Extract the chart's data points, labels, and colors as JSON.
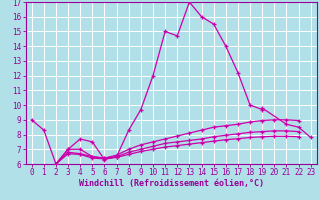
{
  "xlabel": "Windchill (Refroidissement éolien,°C)",
  "background_color": "#b2e0e8",
  "grid_color": "#ffffff",
  "line_color": "#cc00aa",
  "xlim": [
    -0.5,
    23.5
  ],
  "ylim": [
    6,
    17
  ],
  "xticks": [
    0,
    1,
    2,
    3,
    4,
    5,
    6,
    7,
    8,
    9,
    10,
    11,
    12,
    13,
    14,
    15,
    16,
    17,
    18,
    19,
    20,
    21,
    22,
    23
  ],
  "yticks": [
    6,
    7,
    8,
    9,
    10,
    11,
    12,
    13,
    14,
    15,
    16,
    17
  ],
  "series": [
    {
      "x": [
        0,
        1,
        2,
        3,
        4,
        5,
        6,
        7,
        8,
        9,
        10,
        11,
        12,
        13,
        14,
        15,
        16,
        17,
        18,
        19
      ],
      "y": [
        9.0,
        8.3,
        6.0,
        7.0,
        7.7,
        7.5,
        6.3,
        6.5,
        8.3,
        9.7,
        12.0,
        15.0,
        14.7,
        17.0,
        16.0,
        15.5,
        14.0,
        12.2,
        10.0,
        9.7
      ]
    },
    {
      "x": [
        19,
        21,
        22,
        23
      ],
      "y": [
        9.8,
        8.7,
        8.5,
        7.8
      ]
    },
    {
      "x": [
        2,
        3,
        4,
        5,
        6,
        7,
        8,
        9,
        10,
        11,
        12,
        13,
        14,
        15,
        16,
        17,
        18,
        19,
        20,
        21,
        22
      ],
      "y": [
        6.0,
        7.0,
        7.0,
        6.5,
        6.4,
        6.6,
        7.0,
        7.3,
        7.5,
        7.7,
        7.9,
        8.1,
        8.3,
        8.5,
        8.6,
        8.7,
        8.85,
        8.95,
        9.0,
        9.0,
        8.95
      ]
    },
    {
      "x": [
        2,
        3,
        4,
        5,
        6,
        7,
        8,
        9,
        10,
        11,
        12,
        13,
        14,
        15,
        16,
        17,
        18,
        19,
        20,
        21,
        22
      ],
      "y": [
        6.0,
        6.8,
        6.7,
        6.5,
        6.4,
        6.5,
        6.8,
        7.0,
        7.2,
        7.4,
        7.5,
        7.6,
        7.7,
        7.85,
        7.95,
        8.05,
        8.15,
        8.2,
        8.25,
        8.25,
        8.2
      ]
    },
    {
      "x": [
        2,
        3,
        4,
        5,
        6,
        7,
        8,
        9,
        10,
        11,
        12,
        13,
        14,
        15,
        16,
        17,
        18,
        19,
        20,
        21,
        22
      ],
      "y": [
        6.0,
        6.7,
        6.65,
        6.4,
        6.35,
        6.45,
        6.65,
        6.85,
        7.0,
        7.15,
        7.25,
        7.35,
        7.45,
        7.55,
        7.65,
        7.72,
        7.8,
        7.85,
        7.88,
        7.88,
        7.85
      ]
    }
  ]
}
